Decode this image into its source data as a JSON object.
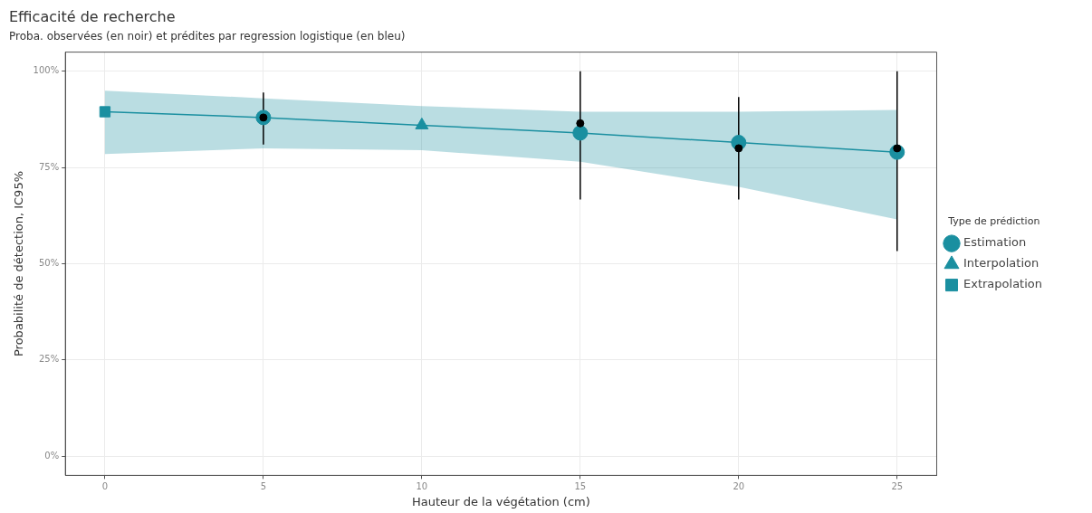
{
  "chart_data": {
    "type": "scatter",
    "title": "Efficacité de recherche",
    "subtitle": "Proba. observées (en noir) et prédites par regression logistique (en bleu)",
    "xlabel": "Hauteur de la végétation (cm)",
    "ylabel": "Probabilité de détection, IC95%",
    "legend_title": "Type de prédiction",
    "xlim": [
      -1.25,
      26.25
    ],
    "xticks": [
      0,
      5,
      10,
      15,
      20,
      25
    ],
    "ylim": [
      -5,
      105
    ],
    "yticks": [
      {
        "value": 0,
        "label": "0%"
      },
      {
        "value": 25,
        "label": "25%"
      },
      {
        "value": 50,
        "label": "50%"
      },
      {
        "value": 75,
        "label": "75%"
      },
      {
        "value": 100,
        "label": "100%"
      }
    ],
    "grid": true,
    "legend": "right",
    "series": [
      {
        "type": "line",
        "color": "#1a8fa0",
        "marker": "none",
        "x": [
          0,
          5,
          10,
          15,
          20,
          25
        ],
        "values": [
          89.5,
          88,
          86,
          84,
          81.5,
          79
        ],
        "lower": [
          78.5,
          80,
          79.5,
          76.5,
          70,
          61.5
        ],
        "upper": [
          95,
          93,
          91,
          89.5,
          89.5,
          90
        ]
      },
      {
        "color": "#000000",
        "marker": "circle",
        "x": [
          5,
          15,
          20,
          25
        ],
        "values": [
          88,
          86.5,
          80,
          80
        ],
        "errors": [
          [
            81,
            94.5
          ],
          [
            66.7,
            100
          ],
          [
            66.7,
            93.3
          ],
          [
            53.3,
            100
          ]
        ]
      },
      {
        "name": "Estimation",
        "color": "#1a8fa0",
        "marker": "circle",
        "x": [
          5,
          15,
          20,
          25
        ],
        "values": [
          88,
          84,
          81.5,
          79
        ]
      },
      {
        "name": "Interpolation",
        "color": "#1a8fa0",
        "marker": "triangle",
        "x": [
          10
        ],
        "values": [
          86
        ]
      },
      {
        "name": "Extrapolation",
        "color": "#1a8fa0",
        "marker": "square",
        "x": [
          0
        ],
        "values": [
          89.5
        ]
      }
    ]
  }
}
